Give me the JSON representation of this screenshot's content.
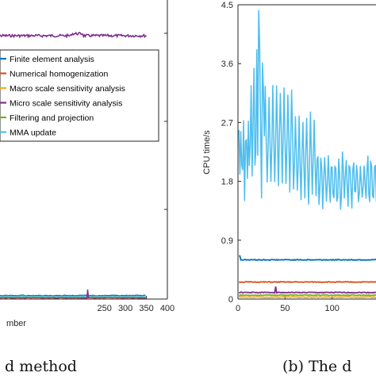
{
  "chart_data": [
    {
      "type": "line",
      "title": "",
      "xlabel": "mber",
      "ylabel": "",
      "xlim": [
        -18,
        400
      ],
      "xticks": [
        "250",
        "300",
        "350",
        "400"
      ],
      "grid": false,
      "legend_position": "top-right",
      "colors": [
        "#0072BD",
        "#D95319",
        "#EDB120",
        "#7E2F8E",
        "#77AC30",
        "#4DBEEE"
      ],
      "series": [
        {
          "name": "Finite element analysis",
          "level": "flat near bottom",
          "color": "#0072BD"
        },
        {
          "name": "Numerical homogenization",
          "level": "flat near bottom",
          "color": "#D95319"
        },
        {
          "name": "Macro scale sensitivity analysis",
          "level": "flat near bottom",
          "color": "#EDB120"
        },
        {
          "name": "Micro scale sensitivity analysis",
          "level": "near top (~0.9 of axis height) up to iteration ~350, and a short spike near iteration ~210",
          "color": "#7E2F8E"
        },
        {
          "name": "Filtering and projection",
          "level": "flat near bottom",
          "color": "#77AC30"
        },
        {
          "name": "MMA update",
          "level": "flat near bottom",
          "color": "#4DBEEE"
        }
      ],
      "caption": "d method"
    },
    {
      "type": "line",
      "title": "",
      "xlabel": "",
      "ylabel": "CPU time/s",
      "xlim": [
        0,
        150
      ],
      "ylim": [
        0,
        4.5
      ],
      "xticks": [
        "0",
        "50",
        "100"
      ],
      "yticks": [
        "0",
        "0.9",
        "1.8",
        "2.7",
        "3.6",
        "4.5"
      ],
      "grid": false,
      "series": [
        {
          "name": "MMA update",
          "color": "#4DBEEE",
          "approx_values": "oscillates 1.7–3.0 for iterations 0–25; rises to 1.5–4.4 peak near iteration 22; large oscillations 1.3–3.4 between 25–80; settles to 1.3–2.4 after iteration 80"
        },
        {
          "name": "Finite element analysis",
          "color": "#0072BD",
          "approx_values": "about 0.60 throughout (0.66 at start)"
        },
        {
          "name": "Numerical homogenization",
          "color": "#D95319",
          "approx_values": "about 0.26 throughout"
        },
        {
          "name": "Micro scale sensitivity analysis",
          "color": "#7E2F8E",
          "approx_values": "about 0.10 with a spike to 0.19 near iteration 40"
        },
        {
          "name": "Filtering and projection",
          "color": "#77AC30",
          "approx_values": "about 0.06"
        },
        {
          "name": "Macro scale sensitivity analysis",
          "color": "#EDB120",
          "approx_values": "about 0.03"
        }
      ],
      "caption": "(b) The d"
    }
  ]
}
